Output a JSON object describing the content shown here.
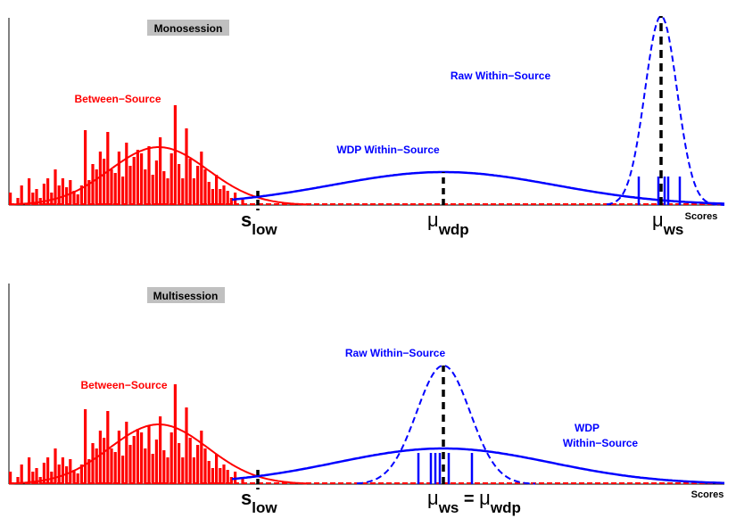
{
  "colors": {
    "between": "#ff0000",
    "within": "#0000ff",
    "marker": "#000000",
    "tag_bg": "#c0c0c0"
  },
  "panels": [
    {
      "id": "top",
      "tag": "Monosession",
      "labels": {
        "between": "Between−Source",
        "raw_within": "Raw Within−Source",
        "wdp_within": "WDP Within−Source",
        "wdp_within_line2": "",
        "scores": "Scores"
      },
      "markers": {
        "s_low": {
          "main": "s",
          "sub": "low"
        },
        "mu_left": {
          "main": "μ",
          "sub": "wdp"
        },
        "mu_right": {
          "main": "μ",
          "sub": "ws"
        },
        "mu_center_eq": ""
      }
    },
    {
      "id": "bottom",
      "tag": "Multisession",
      "labels": {
        "between": "Between−Source",
        "raw_within": "Raw Within−Source",
        "wdp_within": "WDP",
        "wdp_within_line2": "Within−Source",
        "scores": "Scores"
      },
      "markers": {
        "s_low": {
          "main": "s",
          "sub": "low"
        },
        "mu_center": {
          "main": "μ",
          "sub": "ws"
        },
        "mu_center_eq": " = ",
        "mu_center2": {
          "main": "μ",
          "sub": "wdp"
        }
      }
    }
  ]
}
